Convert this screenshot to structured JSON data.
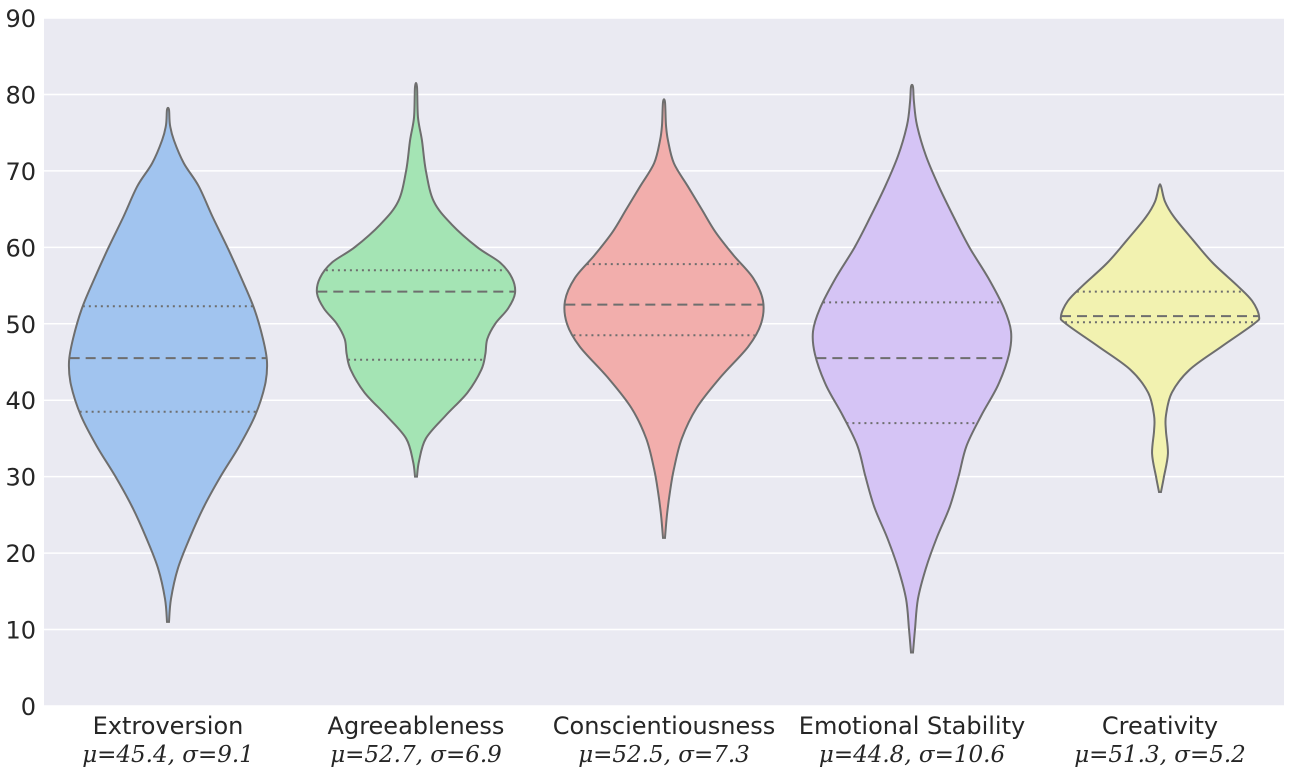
{
  "chart_data": {
    "type": "violin",
    "title": "",
    "xlabel": "",
    "ylabel": "",
    "ylim": [
      0,
      90
    ],
    "yticks": [
      0,
      10,
      20,
      30,
      40,
      50,
      60,
      70,
      80,
      90
    ],
    "grid": true,
    "colors": {
      "background": "#eaeaf2",
      "grid": "#ffffff",
      "outline": "#6e6e6e"
    },
    "categories": [
      {
        "name": "Extroversion",
        "stats": "μ=45.4, σ=9.1",
        "color": "#a1c4ef",
        "min": 11,
        "max": 78,
        "median": 45.5,
        "q1": 38.5,
        "q3": 52.3,
        "profile": [
          [
            11,
            0.01
          ],
          [
            14,
            0.03
          ],
          [
            18,
            0.1
          ],
          [
            22,
            0.22
          ],
          [
            26,
            0.36
          ],
          [
            30,
            0.53
          ],
          [
            34,
            0.72
          ],
          [
            38,
            0.88
          ],
          [
            42,
            0.98
          ],
          [
            45,
            1.0
          ],
          [
            48,
            0.96
          ],
          [
            52,
            0.87
          ],
          [
            56,
            0.74
          ],
          [
            60,
            0.6
          ],
          [
            64,
            0.45
          ],
          [
            68,
            0.31
          ],
          [
            71,
            0.16
          ],
          [
            74,
            0.06
          ],
          [
            76,
            0.02
          ],
          [
            78,
            0.01
          ]
        ]
      },
      {
        "name": "Agreeableness",
        "stats": "μ=52.7, σ=6.9",
        "color": "#a4e4b4",
        "min": 30,
        "max": 81,
        "median": 54.2,
        "q1": 45.3,
        "q3": 57.0,
        "profile": [
          [
            30,
            0.01
          ],
          [
            32,
            0.03
          ],
          [
            35,
            0.1
          ],
          [
            38,
            0.3
          ],
          [
            41,
            0.52
          ],
          [
            44,
            0.66
          ],
          [
            46,
            0.7
          ],
          [
            48,
            0.72
          ],
          [
            50,
            0.8
          ],
          [
            52,
            0.93
          ],
          [
            54,
            1.0
          ],
          [
            56,
            0.97
          ],
          [
            58,
            0.85
          ],
          [
            60,
            0.62
          ],
          [
            63,
            0.36
          ],
          [
            66,
            0.18
          ],
          [
            70,
            0.1
          ],
          [
            74,
            0.06
          ],
          [
            77,
            0.02
          ],
          [
            81,
            0.01
          ]
        ]
      },
      {
        "name": "Conscientiousness",
        "stats": "μ=52.5, σ=7.3",
        "color": "#f2aeac",
        "min": 22,
        "max": 79,
        "median": 52.5,
        "q1": 48.5,
        "q3": 57.8,
        "profile": [
          [
            22,
            0.01
          ],
          [
            25,
            0.03
          ],
          [
            28,
            0.06
          ],
          [
            31,
            0.1
          ],
          [
            35,
            0.18
          ],
          [
            39,
            0.33
          ],
          [
            43,
            0.57
          ],
          [
            47,
            0.85
          ],
          [
            50,
            0.98
          ],
          [
            53,
            1.0
          ],
          [
            56,
            0.9
          ],
          [
            59,
            0.7
          ],
          [
            62,
            0.52
          ],
          [
            65,
            0.38
          ],
          [
            68,
            0.24
          ],
          [
            71,
            0.1
          ],
          [
            74,
            0.04
          ],
          [
            76,
            0.02
          ],
          [
            79,
            0.01
          ]
        ]
      },
      {
        "name": "Emotional Stability",
        "stats": "μ=44.8, σ=10.6",
        "color": "#d5c4f5",
        "min": 7,
        "max": 81,
        "median": 45.5,
        "q1": 37.0,
        "q3": 52.8,
        "profile": [
          [
            7,
            0.01
          ],
          [
            10,
            0.03
          ],
          [
            14,
            0.06
          ],
          [
            18,
            0.14
          ],
          [
            22,
            0.25
          ],
          [
            26,
            0.38
          ],
          [
            30,
            0.47
          ],
          [
            34,
            0.55
          ],
          [
            38,
            0.7
          ],
          [
            42,
            0.87
          ],
          [
            46,
            0.98
          ],
          [
            49,
            1.0
          ],
          [
            52,
            0.93
          ],
          [
            56,
            0.77
          ],
          [
            60,
            0.58
          ],
          [
            64,
            0.42
          ],
          [
            68,
            0.27
          ],
          [
            72,
            0.14
          ],
          [
            76,
            0.05
          ],
          [
            79,
            0.02
          ],
          [
            81,
            0.01
          ]
        ]
      },
      {
        "name": "Creativity",
        "stats": "μ=51.3, σ=5.2",
        "color": "#f2f2b0",
        "min": 28,
        "max": 68,
        "median": 51.0,
        "q1": 50.2,
        "q3": 54.2,
        "profile": [
          [
            28,
            0.01
          ],
          [
            30,
            0.04
          ],
          [
            33,
            0.08
          ],
          [
            36,
            0.06
          ],
          [
            38,
            0.06
          ],
          [
            41,
            0.12
          ],
          [
            44,
            0.3
          ],
          [
            47,
            0.62
          ],
          [
            50,
            0.95
          ],
          [
            51,
            1.0
          ],
          [
            53,
            0.93
          ],
          [
            55,
            0.78
          ],
          [
            58,
            0.53
          ],
          [
            61,
            0.33
          ],
          [
            64,
            0.14
          ],
          [
            66,
            0.05
          ],
          [
            68,
            0.01
          ]
        ]
      }
    ]
  }
}
